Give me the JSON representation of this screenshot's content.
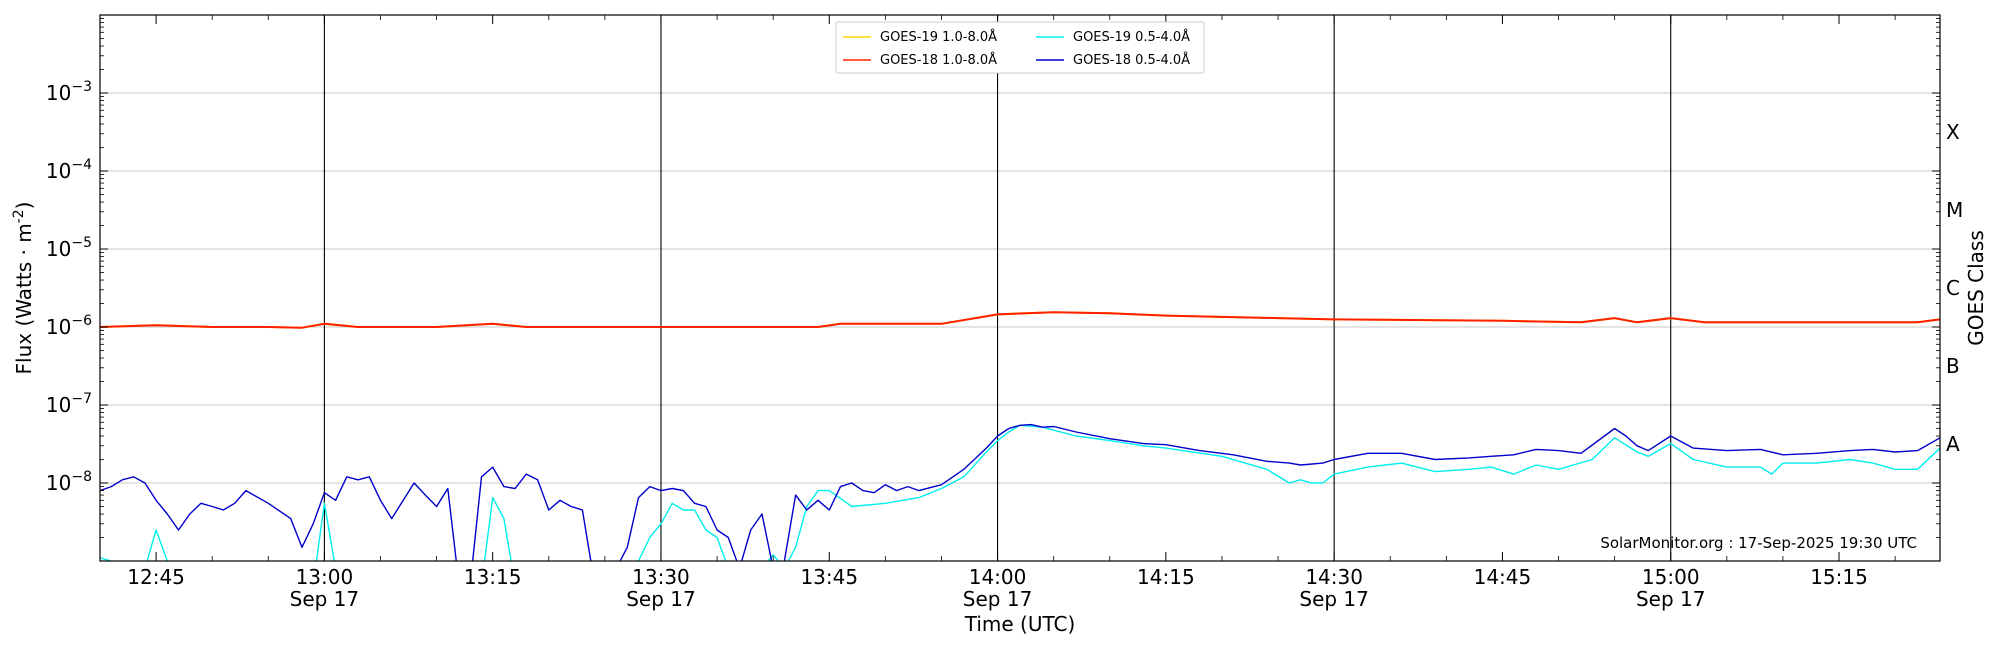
{
  "chart_data": {
    "type": "line",
    "ylabel": "Flux (Watts · m",
    "ylabel_sup": "-2",
    "ylabel_tail": ")",
    "xlabel": "Time (UTC)",
    "right_label": "GOES Class",
    "credit": "SolarMonitor.org : 17-Sep-2025 19:30 UTC",
    "x_range": [
      "12:40",
      "15:24"
    ],
    "y_scale": "log",
    "ylim": [
      1e-09,
      0.01
    ],
    "grid": true,
    "legend_position": "top-center",
    "x_ticks": [
      {
        "t": "12:45",
        "label": "12:45",
        "sub": ""
      },
      {
        "t": "13:00",
        "label": "13:00",
        "sub": "Sep 17"
      },
      {
        "t": "13:15",
        "label": "13:15",
        "sub": ""
      },
      {
        "t": "13:30",
        "label": "13:30",
        "sub": "Sep 17"
      },
      {
        "t": "13:45",
        "label": "13:45",
        "sub": ""
      },
      {
        "t": "14:00",
        "label": "14:00",
        "sub": "Sep 17"
      },
      {
        "t": "14:15",
        "label": "14:15",
        "sub": ""
      },
      {
        "t": "14:30",
        "label": "14:30",
        "sub": "Sep 17"
      },
      {
        "t": "14:45",
        "label": "14:45",
        "sub": ""
      },
      {
        "t": "15:00",
        "label": "15:00",
        "sub": "Sep 17"
      },
      {
        "t": "15:15",
        "label": "15:15",
        "sub": ""
      }
    ],
    "y_ticks": [
      {
        "exp": -8,
        "label": "10",
        "sup": "−8"
      },
      {
        "exp": -7,
        "label": "10",
        "sup": "−7"
      },
      {
        "exp": -6,
        "label": "10",
        "sup": "−6"
      },
      {
        "exp": -5,
        "label": "10",
        "sup": "−5"
      },
      {
        "exp": -4,
        "label": "10",
        "sup": "−4"
      },
      {
        "exp": -3,
        "label": "10",
        "sup": "−3"
      }
    ],
    "goes_classes": [
      {
        "label": "A",
        "exp": -7.5
      },
      {
        "label": "B",
        "exp": -6.5
      },
      {
        "label": "C",
        "exp": -5.5
      },
      {
        "label": "M",
        "exp": -4.5
      },
      {
        "label": "X",
        "exp": -3.5
      }
    ],
    "series": [
      {
        "name": "GOES-19 1.0-8.0Å",
        "color": "#ffd700",
        "points": [
          [
            "12:40",
            1e-06
          ],
          [
            "12:45",
            1.05e-06
          ],
          [
            "12:50",
            1e-06
          ],
          [
            "12:55",
            1e-06
          ],
          [
            "12:58",
            9.8e-07
          ],
          [
            "13:00",
            1.1e-06
          ],
          [
            "13:03",
            1e-06
          ],
          [
            "13:10",
            1e-06
          ],
          [
            "13:15",
            1.1e-06
          ],
          [
            "13:18",
            1e-06
          ],
          [
            "13:25",
            1e-06
          ],
          [
            "13:30",
            1e-06
          ],
          [
            "13:40",
            1e-06
          ],
          [
            "13:44",
            1e-06
          ],
          [
            "13:46",
            1.1e-06
          ],
          [
            "13:55",
            1.1e-06
          ],
          [
            "14:00",
            1.45e-06
          ],
          [
            "14:05",
            1.55e-06
          ],
          [
            "14:10",
            1.5e-06
          ],
          [
            "14:15",
            1.4e-06
          ],
          [
            "14:25",
            1.3e-06
          ],
          [
            "14:30",
            1.25e-06
          ],
          [
            "14:45",
            1.2e-06
          ],
          [
            "14:52",
            1.15e-06
          ],
          [
            "14:55",
            1.3e-06
          ],
          [
            "14:57",
            1.15e-06
          ],
          [
            "15:00",
            1.3e-06
          ],
          [
            "15:03",
            1.15e-06
          ],
          [
            "15:10",
            1.15e-06
          ],
          [
            "15:15",
            1.15e-06
          ],
          [
            "15:22",
            1.15e-06
          ],
          [
            "15:24",
            1.25e-06
          ]
        ]
      },
      {
        "name": "GOES-18 1.0-8.0Å",
        "color": "#ff2000",
        "points": [
          [
            "12:40",
            1e-06
          ],
          [
            "12:45",
            1.05e-06
          ],
          [
            "12:50",
            1e-06
          ],
          [
            "12:55",
            1e-06
          ],
          [
            "12:58",
            9.8e-07
          ],
          [
            "13:00",
            1.1e-06
          ],
          [
            "13:03",
            1e-06
          ],
          [
            "13:10",
            1e-06
          ],
          [
            "13:15",
            1.1e-06
          ],
          [
            "13:18",
            1e-06
          ],
          [
            "13:25",
            1e-06
          ],
          [
            "13:30",
            1e-06
          ],
          [
            "13:40",
            1e-06
          ],
          [
            "13:44",
            1e-06
          ],
          [
            "13:46",
            1.1e-06
          ],
          [
            "13:55",
            1.1e-06
          ],
          [
            "14:00",
            1.45e-06
          ],
          [
            "14:05",
            1.55e-06
          ],
          [
            "14:10",
            1.5e-06
          ],
          [
            "14:15",
            1.4e-06
          ],
          [
            "14:25",
            1.3e-06
          ],
          [
            "14:30",
            1.25e-06
          ],
          [
            "14:45",
            1.2e-06
          ],
          [
            "14:52",
            1.15e-06
          ],
          [
            "14:55",
            1.3e-06
          ],
          [
            "14:57",
            1.15e-06
          ],
          [
            "15:00",
            1.3e-06
          ],
          [
            "15:03",
            1.15e-06
          ],
          [
            "15:10",
            1.15e-06
          ],
          [
            "15:15",
            1.15e-06
          ],
          [
            "15:22",
            1.15e-06
          ],
          [
            "15:24",
            1.25e-06
          ]
        ]
      },
      {
        "name": "GOES-19 0.5-4.0Å",
        "color": "#00eeee",
        "points": [
          [
            "12:40",
            1.1e-09
          ],
          [
            "12:41",
            1e-09
          ],
          [
            "12:42",
            8e-10
          ],
          [
            "12:44",
            8e-10
          ],
          [
            "12:45",
            2.5e-09
          ],
          [
            "12:46",
            1e-09
          ],
          [
            "12:47",
            5e-10
          ],
          [
            "12:59",
            5e-10
          ],
          [
            "13:00",
            5.5e-09
          ],
          [
            "13:01",
            8e-10
          ],
          [
            "13:02",
            5e-10
          ],
          [
            "13:14",
            5e-10
          ],
          [
            "13:15",
            6.5e-09
          ],
          [
            "13:16",
            3.5e-09
          ],
          [
            "13:17",
            5e-10
          ],
          [
            "13:27",
            5e-10
          ],
          [
            "13:28",
            1e-09
          ],
          [
            "13:29",
            2e-09
          ],
          [
            "13:30",
            3e-09
          ],
          [
            "13:31",
            5.5e-09
          ],
          [
            "13:32",
            4.5e-09
          ],
          [
            "13:33",
            4.5e-09
          ],
          [
            "13:34",
            2.5e-09
          ],
          [
            "13:35",
            2e-09
          ],
          [
            "13:36",
            8e-10
          ],
          [
            "13:39",
            8e-10
          ],
          [
            "13:40",
            1.2e-09
          ],
          [
            "13:41",
            8e-10
          ],
          [
            "13:42",
            1.5e-09
          ],
          [
            "13:43",
            5e-09
          ],
          [
            "13:44",
            8e-09
          ],
          [
            "13:45",
            8e-09
          ],
          [
            "13:47",
            5e-09
          ],
          [
            "13:50",
            5.5e-09
          ],
          [
            "13:53",
            6.5e-09
          ],
          [
            "13:55",
            8.5e-09
          ],
          [
            "13:57",
            1.2e-08
          ],
          [
            "13:59",
            2.5e-08
          ],
          [
            "14:00",
            3.5e-08
          ],
          [
            "14:01",
            4.5e-08
          ],
          [
            "14:02",
            5.5e-08
          ],
          [
            "14:04",
            5.2e-08
          ],
          [
            "14:07",
            4e-08
          ],
          [
            "14:10",
            3.5e-08
          ],
          [
            "14:13",
            3e-08
          ],
          [
            "14:15",
            2.8e-08
          ],
          [
            "14:20",
            2.2e-08
          ],
          [
            "14:24",
            1.5e-08
          ],
          [
            "14:26",
            1e-08
          ],
          [
            "14:27",
            1.1e-08
          ],
          [
            "14:28",
            1e-08
          ],
          [
            "14:29",
            1e-08
          ],
          [
            "14:30",
            1.3e-08
          ],
          [
            "14:33",
            1.6e-08
          ],
          [
            "14:36",
            1.8e-08
          ],
          [
            "14:39",
            1.4e-08
          ],
          [
            "14:42",
            1.5e-08
          ],
          [
            "14:44",
            1.6e-08
          ],
          [
            "14:46",
            1.3e-08
          ],
          [
            "14:48",
            1.7e-08
          ],
          [
            "14:50",
            1.5e-08
          ],
          [
            "14:53",
            2e-08
          ],
          [
            "14:55",
            3.8e-08
          ],
          [
            "14:57",
            2.5e-08
          ],
          [
            "14:58",
            2.2e-08
          ],
          [
            "15:00",
            3.2e-08
          ],
          [
            "15:02",
            2e-08
          ],
          [
            "15:05",
            1.6e-08
          ],
          [
            "15:08",
            1.6e-08
          ],
          [
            "15:09",
            1.3e-08
          ],
          [
            "15:10",
            1.8e-08
          ],
          [
            "15:13",
            1.8e-08
          ],
          [
            "15:16",
            2e-08
          ],
          [
            "15:18",
            1.8e-08
          ],
          [
            "15:20",
            1.5e-08
          ],
          [
            "15:22",
            1.5e-08
          ],
          [
            "15:24",
            2.8e-08
          ]
        ]
      },
      {
        "name": "GOES-18 0.5-4.0Å",
        "color": "#0000cc",
        "points": [
          [
            "12:40",
            8e-09
          ],
          [
            "12:41",
            9e-09
          ],
          [
            "12:42",
            1.1e-08
          ],
          [
            "12:43",
            1.2e-08
          ],
          [
            "12:44",
            1e-08
          ],
          [
            "12:45",
            6e-09
          ],
          [
            "12:46",
            4e-09
          ],
          [
            "12:47",
            2.5e-09
          ],
          [
            "12:48",
            4e-09
          ],
          [
            "12:49",
            5.5e-09
          ],
          [
            "12:50",
            5e-09
          ],
          [
            "12:51",
            4.5e-09
          ],
          [
            "12:52",
            5.5e-09
          ],
          [
            "12:53",
            8e-09
          ],
          [
            "12:55",
            5.5e-09
          ],
          [
            "12:57",
            3.5e-09
          ],
          [
            "12:58",
            1.5e-09
          ],
          [
            "12:59",
            3e-09
          ],
          [
            "13:00",
            7.5e-09
          ],
          [
            "13:01",
            6e-09
          ],
          [
            "13:02",
            1.2e-08
          ],
          [
            "13:03",
            1.1e-08
          ],
          [
            "13:04",
            1.2e-08
          ],
          [
            "13:05",
            6e-09
          ],
          [
            "13:06",
            3.5e-09
          ],
          [
            "13:08",
            1e-08
          ],
          [
            "13:09",
            7e-09
          ],
          [
            "13:10",
            5e-09
          ],
          [
            "13:11",
            8.5e-09
          ],
          [
            "13:12",
            5e-10
          ],
          [
            "13:13",
            5e-10
          ],
          [
            "13:14",
            1.2e-08
          ],
          [
            "13:15",
            1.6e-08
          ],
          [
            "13:16",
            9e-09
          ],
          [
            "13:17",
            8.5e-09
          ],
          [
            "13:18",
            1.3e-08
          ],
          [
            "13:19",
            1.1e-08
          ],
          [
            "13:20",
            4.5e-09
          ],
          [
            "13:21",
            6e-09
          ],
          [
            "13:22",
            5e-09
          ],
          [
            "13:23",
            4.5e-09
          ],
          [
            "13:24",
            6e-10
          ],
          [
            "13:26",
            8e-10
          ],
          [
            "13:27",
            1.5e-09
          ],
          [
            "13:28",
            6.5e-09
          ],
          [
            "13:29",
            9e-09
          ],
          [
            "13:30",
            8e-09
          ],
          [
            "13:31",
            8.5e-09
          ],
          [
            "13:32",
            8e-09
          ],
          [
            "13:33",
            5.5e-09
          ],
          [
            "13:34",
            5e-09
          ],
          [
            "13:35",
            2.5e-09
          ],
          [
            "13:36",
            2e-09
          ],
          [
            "13:37",
            8e-10
          ],
          [
            "13:38",
            2.5e-09
          ],
          [
            "13:39",
            4e-09
          ],
          [
            "13:40",
            8e-10
          ],
          [
            "13:41",
            1e-09
          ],
          [
            "13:42",
            7e-09
          ],
          [
            "13:43",
            4.5e-09
          ],
          [
            "13:44",
            6e-09
          ],
          [
            "13:45",
            4.5e-09
          ],
          [
            "13:46",
            9e-09
          ],
          [
            "13:47",
            1e-08
          ],
          [
            "13:48",
            8e-09
          ],
          [
            "13:49",
            7.5e-09
          ],
          [
            "13:50",
            9.5e-09
          ],
          [
            "13:51",
            8e-09
          ],
          [
            "13:52",
            9e-09
          ],
          [
            "13:53",
            8e-09
          ],
          [
            "13:55",
            9.5e-09
          ],
          [
            "13:57",
            1.5e-08
          ],
          [
            "13:59",
            2.8e-08
          ],
          [
            "14:00",
            4e-08
          ],
          [
            "14:01",
            5e-08
          ],
          [
            "14:02",
            5.5e-08
          ],
          [
            "14:03",
            5.6e-08
          ],
          [
            "14:04",
            5.2e-08
          ],
          [
            "14:05",
            5.3e-08
          ],
          [
            "14:07",
            4.5e-08
          ],
          [
            "14:10",
            3.7e-08
          ],
          [
            "14:13",
            3.2e-08
          ],
          [
            "14:15",
            3.1e-08
          ],
          [
            "14:18",
            2.6e-08
          ],
          [
            "14:21",
            2.3e-08
          ],
          [
            "14:24",
            1.9e-08
          ],
          [
            "14:26",
            1.8e-08
          ],
          [
            "14:27",
            1.7e-08
          ],
          [
            "14:29",
            1.8e-08
          ],
          [
            "14:30",
            2e-08
          ],
          [
            "14:33",
            2.4e-08
          ],
          [
            "14:36",
            2.4e-08
          ],
          [
            "14:39",
            2e-08
          ],
          [
            "14:42",
            2.1e-08
          ],
          [
            "14:44",
            2.2e-08
          ],
          [
            "14:46",
            2.3e-08
          ],
          [
            "14:48",
            2.7e-08
          ],
          [
            "14:50",
            2.6e-08
          ],
          [
            "14:52",
            2.4e-08
          ],
          [
            "14:55",
            5e-08
          ],
          [
            "14:56",
            4e-08
          ],
          [
            "14:57",
            3e-08
          ],
          [
            "14:58",
            2.6e-08
          ],
          [
            "15:00",
            4e-08
          ],
          [
            "15:02",
            2.8e-08
          ],
          [
            "15:05",
            2.6e-08
          ],
          [
            "15:08",
            2.7e-08
          ],
          [
            "15:10",
            2.3e-08
          ],
          [
            "15:13",
            2.4e-08
          ],
          [
            "15:16",
            2.6e-08
          ],
          [
            "15:18",
            2.7e-08
          ],
          [
            "15:20",
            2.5e-08
          ],
          [
            "15:22",
            2.6e-08
          ],
          [
            "15:24",
            3.8e-08
          ]
        ]
      }
    ]
  }
}
